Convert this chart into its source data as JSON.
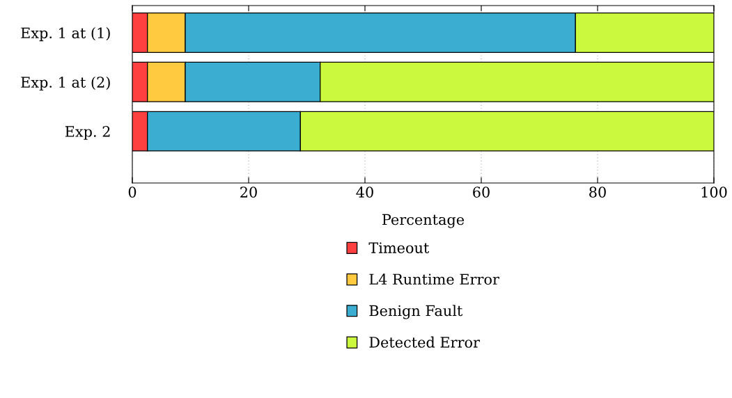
{
  "chart_data": {
    "type": "bar",
    "orientation": "horizontal",
    "stacked": true,
    "xlabel": "Percentage",
    "categories": [
      "Exp. 1 at (1)",
      "Exp. 1 at (2)",
      "Exp. 2"
    ],
    "series": [
      {
        "name": "Timeout",
        "color": "#ff4040",
        "values": [
          2.6,
          2.6,
          2.6
        ]
      },
      {
        "name": "L4 Runtime Error",
        "color": "#ffc940",
        "values": [
          6.5,
          6.5,
          0
        ]
      },
      {
        "name": "Benign Fault",
        "color": "#3aadd0",
        "values": [
          67.1,
          23.2,
          26.3
        ]
      },
      {
        "name": "Detected Error",
        "color": "#cbf93d",
        "values": [
          23.8,
          67.7,
          71.1
        ]
      }
    ],
    "xlim": [
      0,
      100
    ],
    "xticks": [
      0,
      20,
      40,
      60,
      80,
      100
    ],
    "grid": "x",
    "legend": "bottom"
  }
}
